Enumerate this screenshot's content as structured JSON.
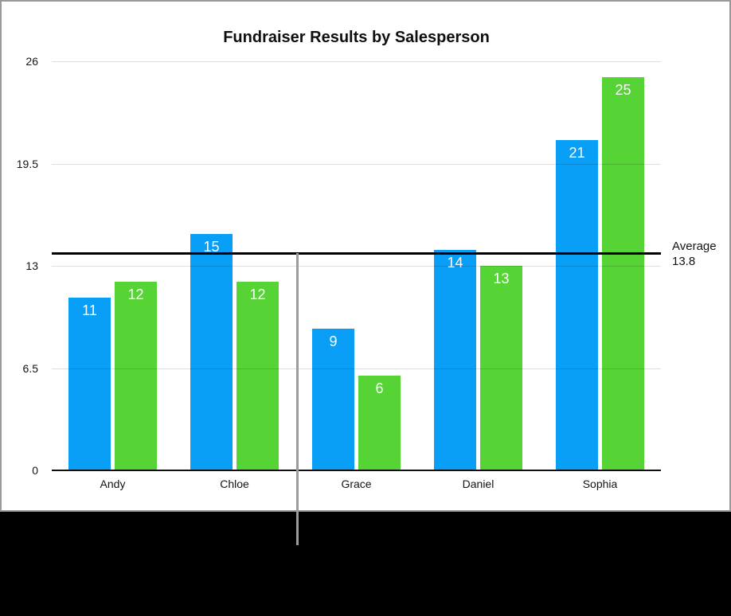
{
  "chart_data": {
    "type": "bar",
    "title": "Fundraiser Results by Salesperson",
    "categories": [
      "Andy",
      "Chloe",
      "Grace",
      "Daniel",
      "Sophia"
    ],
    "series": [
      {
        "name": "series-blue",
        "color": "#0A9FF7",
        "values": [
          11,
          15,
          9,
          14,
          21
        ]
      },
      {
        "name": "series-green",
        "color": "#56D335",
        "values": [
          12,
          12,
          6,
          13,
          25
        ]
      }
    ],
    "yticks": [
      "0",
      "6.5",
      "13",
      "19.5",
      "26"
    ],
    "ytick_values": [
      0,
      6.5,
      13,
      19.5,
      26
    ],
    "ylim": [
      0,
      26
    ],
    "grid": true,
    "legend": "none",
    "bar_value_labels_color": "#ffffff",
    "average_line": {
      "value": 13.8,
      "label_line1": "Average",
      "label_line2": "13.8",
      "color": "#000000"
    }
  },
  "decorations": {
    "leader_line_color": "#9b9b9b",
    "frame_border_color": "#9a9a9a",
    "bottom_region_color": "#000000"
  }
}
